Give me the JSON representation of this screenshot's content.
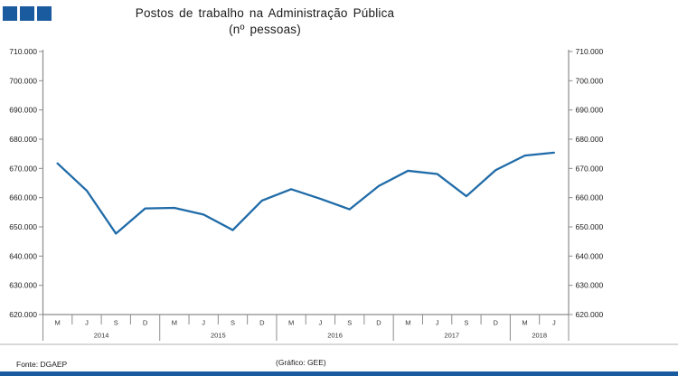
{
  "header": {
    "title_line1": "Postos de trabalho na Administração Pública",
    "title_line2": "(nº pessoas)"
  },
  "footer": {
    "source": "Fonte: DGAEP",
    "credit": "(Gráfico: GEE)"
  },
  "colors": {
    "brand_blue": "#1a5a9e",
    "line_blue": "#1f6ba8",
    "axis_gray": "#8c8c8c",
    "rule_gray": "#b3b3b3"
  },
  "chart_data": {
    "type": "line",
    "title": "Postos de trabalho na Administração Pública (nº pessoas)",
    "ylabel": "nº pessoas",
    "ylim": [
      620000,
      710000
    ],
    "y_tick_labels": [
      "710.000",
      "700.000",
      "690.000",
      "680.000",
      "670.000",
      "660.000",
      "650.000",
      "640.000",
      "630.000",
      "620.000"
    ],
    "y_tick_values": [
      710000,
      700000,
      690000,
      680000,
      670000,
      660000,
      650000,
      640000,
      630000,
      620000
    ],
    "dual_axis": true,
    "grid": false,
    "legend": "none",
    "categories": [
      "M",
      "J",
      "S",
      "D",
      "M",
      "J",
      "S",
      "D",
      "M",
      "J",
      "S",
      "D",
      "M",
      "J",
      "S",
      "D",
      "M",
      "J"
    ],
    "x_groups": [
      {
        "year": "2014",
        "months": [
          "M",
          "J",
          "S",
          "D"
        ]
      },
      {
        "year": "2015",
        "months": [
          "M",
          "J",
          "S",
          "D"
        ]
      },
      {
        "year": "2016",
        "months": [
          "M",
          "J",
          "S",
          "D"
        ]
      },
      {
        "year": "2017",
        "months": [
          "M",
          "J",
          "S",
          "D"
        ]
      },
      {
        "year": "2018",
        "months": [
          "M",
          "J"
        ]
      }
    ],
    "series": [
      {
        "name": "Postos de trabalho na Administração Pública",
        "values": [
          671700,
          662400,
          647700,
          656300,
          656500,
          654200,
          648900,
          659000,
          662900,
          659600,
          656000,
          664000,
          669200,
          668100,
          660500,
          669400,
          674400,
          675400
        ]
      }
    ]
  }
}
